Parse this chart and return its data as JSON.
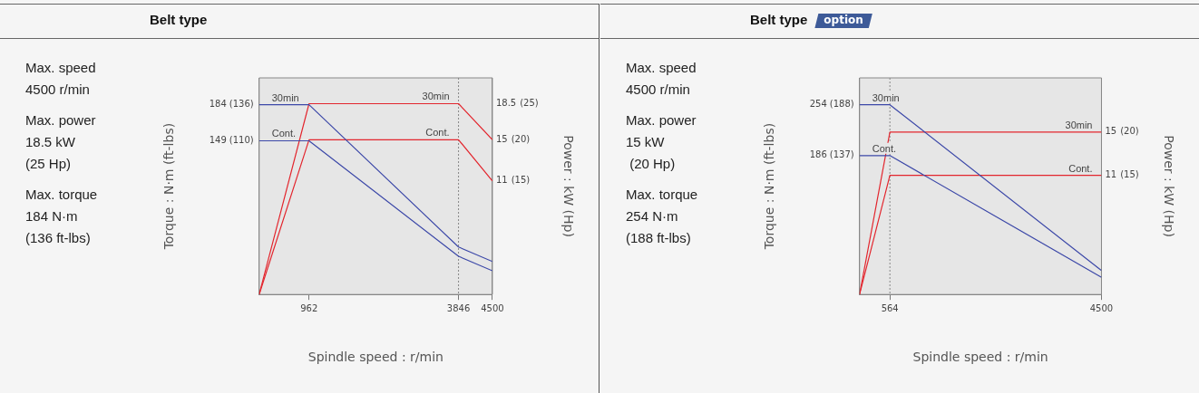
{
  "chart_data": [
    {
      "type": "line",
      "title": "Belt type",
      "xlabel": "Spindle speed : r/min",
      "ylabel": "Torque : N·m (ft-lbs)",
      "y2label": "Power : kW (Hp)",
      "annotations": [
        "Max. speed\n4500 r/min",
        "Max. power\n18.5 kW\n(25 Hp)",
        "Max. torque\n184 N·m\n(136 ft-lbs)",
        "(136)",
        "(110)",
        "(25)",
        "(20)",
        "(15)"
      ],
      "x": [
        0,
        962,
        3846,
        4500
      ],
      "series": [
        {
          "name": "30min",
          "color": "#3c48a8",
          "values": [
            184,
            184,
            46,
            32
          ]
        },
        {
          "name": "Cont.",
          "color": "#3c48a8",
          "values": [
            149,
            149,
            37,
            23
          ]
        },
        {
          "name": "30min",
          "color": "#e3262e",
          "axis": "y2",
          "values": [
            0,
            18.5,
            18.5,
            15
          ]
        },
        {
          "name": "Cont.",
          "color": "#e3262e",
          "axis": "y2",
          "values": [
            0,
            15,
            15,
            11
          ]
        }
      ],
      "xlim": [
        0,
        4500
      ],
      "xticks": [
        962,
        3846,
        4500
      ],
      "ylim": [
        0,
        210
      ],
      "yticks": [
        184,
        149
      ],
      "y2lim": [
        0,
        21
      ],
      "y2ticks": [
        18.5,
        15,
        11
      ],
      "ref_lines": [
        {
          "axis": "x",
          "value": 3846,
          "label": null,
          "color": "#888888",
          "line_style": "dotted"
        }
      ],
      "grid": false,
      "legend": false,
      "marker": "none",
      "line_style": "solid"
    },
    {
      "type": "line",
      "title": "Belt type",
      "subtitle": "option",
      "xlabel": "Spindle speed : r/min",
      "ylabel": "Torque : N·m (ft-lbs)",
      "y2label": "Power : kW (Hp)",
      "annotations": [
        "Max. speed\n4500 r/min",
        "Max. power\n15 kW\n (20 Hp)",
        "Max. torque\n254 N·m\n(188 ft-lbs)",
        "(188)",
        "(137)",
        "(20)",
        "(15)"
      ],
      "x": [
        0,
        564,
        4500
      ],
      "series": [
        {
          "name": "30min",
          "color": "#3c48a8",
          "values": [
            254,
            254,
            32
          ]
        },
        {
          "name": "Cont.",
          "color": "#3c48a8",
          "values": [
            186,
            186,
            23
          ]
        },
        {
          "name": "30min",
          "color": "#e3262e",
          "axis": "y2",
          "values": [
            0,
            15,
            15
          ]
        },
        {
          "name": "Cont.",
          "color": "#e3262e",
          "axis": "y2",
          "values": [
            0,
            11,
            11
          ]
        }
      ],
      "xlim": [
        0,
        4500
      ],
      "xticks": [
        564,
        4500
      ],
      "ylim": [
        0,
        290
      ],
      "yticks": [
        254,
        186
      ],
      "y2lim": [
        0,
        20
      ],
      "y2ticks": [
        15,
        11
      ],
      "ref_lines": [
        {
          "axis": "x",
          "value": 564,
          "label": null,
          "color": "#888888",
          "line_style": "dotted"
        }
      ],
      "grid": false,
      "legend": false,
      "marker": "none",
      "line_style": "solid"
    }
  ]
}
